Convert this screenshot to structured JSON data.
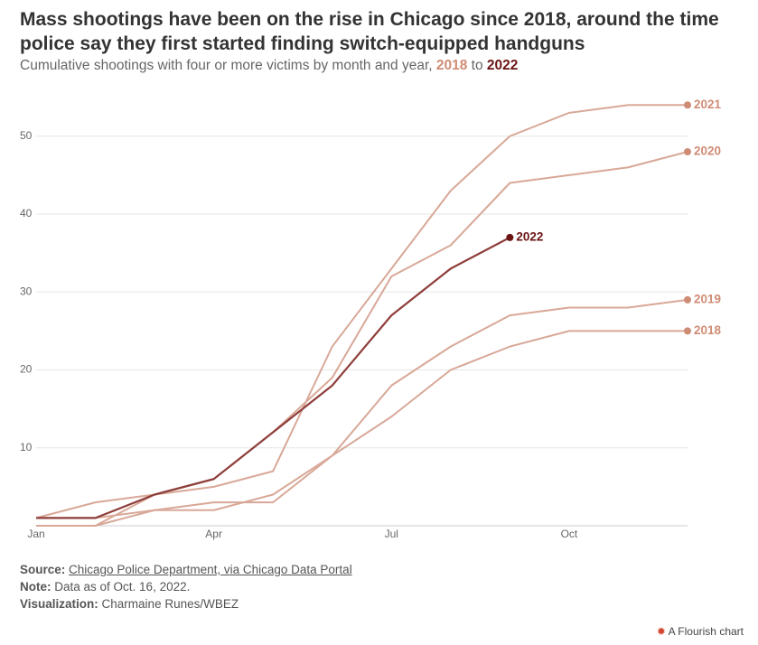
{
  "chart_data": {
    "type": "line",
    "title": "Mass shootings have been on the rise in Chicago since 2018, around the time police say they first started finding switch-equipped handguns",
    "subtitle": [
      "Cumulative shootings with four or more victims by month and year, ",
      "2018",
      " to ",
      "2022"
    ],
    "categories": [
      "Jan",
      null,
      null,
      "Apr",
      null,
      null,
      "Jul",
      null,
      null,
      "Oct",
      null,
      null
    ],
    "ylim": [
      0,
      56
    ],
    "yticks": [
      10,
      20,
      30,
      40,
      50
    ],
    "grid": true,
    "series": [
      {
        "name": "2018",
        "color": "#d8a898",
        "label_color": "#cf8c75",
        "values": [
          1,
          1,
          2,
          2,
          4,
          9,
          14,
          20,
          23,
          25,
          25,
          25
        ]
      },
      {
        "name": "2019",
        "color": "#d8a898",
        "label_color": "#cf8c75",
        "values": [
          0,
          0,
          2,
          3,
          3,
          9,
          18,
          23,
          27,
          28,
          28,
          29
        ]
      },
      {
        "name": "2020",
        "color": "#d8a898",
        "label_color": "#cf8c75",
        "values": [
          0,
          0,
          4,
          6,
          12,
          19,
          32,
          36,
          44,
          45,
          46,
          48
        ]
      },
      {
        "name": "2021",
        "color": "#d8a898",
        "label_color": "#cf8c75",
        "values": [
          1,
          3,
          4,
          5,
          7,
          23,
          33,
          43,
          50,
          53,
          54,
          54
        ]
      },
      {
        "name": "2022",
        "color": "#8e3e3a",
        "label_color": "#6b1414",
        "values": [
          1,
          1,
          4,
          6,
          12,
          18,
          27,
          33,
          37,
          null,
          null,
          null
        ]
      }
    ],
    "footer": {
      "source_label": "Source:",
      "source": "Chicago Police Department, via Chicago Data Portal",
      "note_label": "Note:",
      "note": "Data as of Oct. 16, 2022.",
      "viz_label": "Visualization:",
      "viz": "Charmaine Runes/WBEZ",
      "brand": "A Flourish chart"
    }
  }
}
